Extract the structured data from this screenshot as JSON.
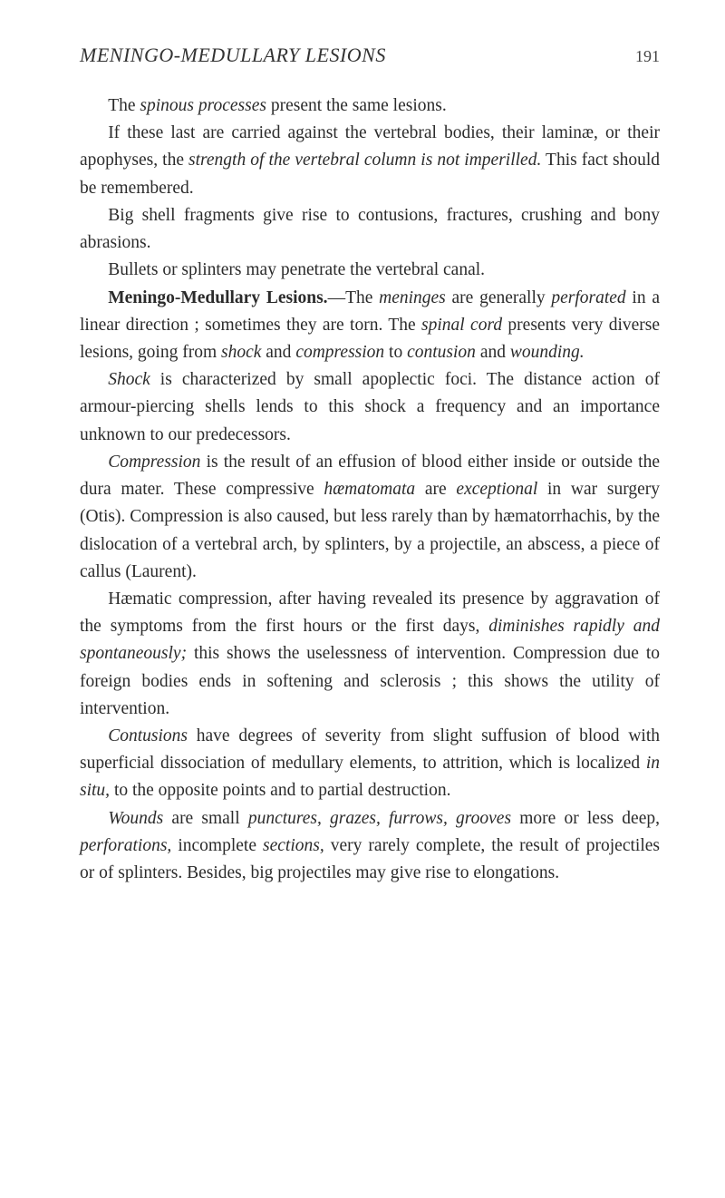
{
  "header": {
    "running_title": "MENINGO-MEDULLARY LESIONS",
    "page_number": "191"
  },
  "paragraphs": {
    "p1": {
      "t1": "The ",
      "i1": "spinous processes",
      "t2": " present the same lesions."
    },
    "p2": {
      "t1": "If these last are carried against the vertebral bodies, their laminæ, or their apophyses, the ",
      "i1": "strength of the vertebral column is not imperilled.",
      "t2": " This fact should be remembered."
    },
    "p3": {
      "t1": "Big shell fragments give rise to contusions, fractures, crushing and bony abrasions."
    },
    "p4": {
      "t1": "Bullets or splinters may penetrate the vertebral canal."
    },
    "p5": {
      "b1": "Meningo-Medullary Lesions.",
      "t1": "—The ",
      "i1": "meninges",
      "t2": " are gene­rally ",
      "i2": "perforated",
      "t3": " in a linear direction ; sometimes they are torn. The ",
      "i3": "spinal cord",
      "t4": " presents very diverse lesions, going from ",
      "i4": "shock",
      "t5": " and ",
      "i5": "compression",
      "t6": " to ",
      "i6": "contusion",
      "t7": " and ",
      "i7": "wounding."
    },
    "p6": {
      "i1": "Shock",
      "t1": " is characterized by small apoplectic foci. The dis­tance action of armour-piercing shells lends to this shock a frequency and an importance unknown to our prede­cessors."
    },
    "p7": {
      "i1": "Compression",
      "t1": " is the result of an effusion of blood either inside or outside the dura mater. These compressive ",
      "i2": "hæmatomata",
      "t2": " are ",
      "i3": "exceptional",
      "t3": " in war surgery (Otis). Compres­sion is also caused, but less rarely than by hæmatorrhachis, by the dislocation of a vertebral arch, by splinters, by a projectile, an abscess, a piece of callus (Laurent)."
    },
    "p8": {
      "t1": "Hæmatic compression, after having revealed its presence by aggravation of the symptoms from the first hours or the first days, ",
      "i1": "diminishes rapidly and spontaneously;",
      "t2": " this shows the uselessness of intervention. Compression due to foreign bodies ends in softening and sclerosis ; this shows the utility of intervention."
    },
    "p9": {
      "i1": "Contusions",
      "t1": " have degrees of severity from slight suffusion of blood with superficial dissociation of medullary elements, to attrition, which is localized ",
      "i2": "in situ,",
      "t2": " to the opposite points and to partial destruction."
    },
    "p10": {
      "i1": "Wounds",
      "t1": " are small ",
      "i2": "punctures, grazes, furrows, grooves",
      "t2": " more or less deep, ",
      "i3": "perforations,",
      "t3": " incomplete ",
      "i4": "sections,",
      "t4": " very rarely com­plete, the result of projectiles or of splinters. Besides, big projectiles may give rise to elongations."
    }
  },
  "colors": {
    "background": "#ffffff",
    "text": "#2b2b2b",
    "header_text": "#333333",
    "page_num": "#444444"
  },
  "typography": {
    "body_font_size": 19.5,
    "header_font_size": 22,
    "page_num_font_size": 18,
    "line_height": 1.55,
    "text_indent_em": 1.6
  }
}
